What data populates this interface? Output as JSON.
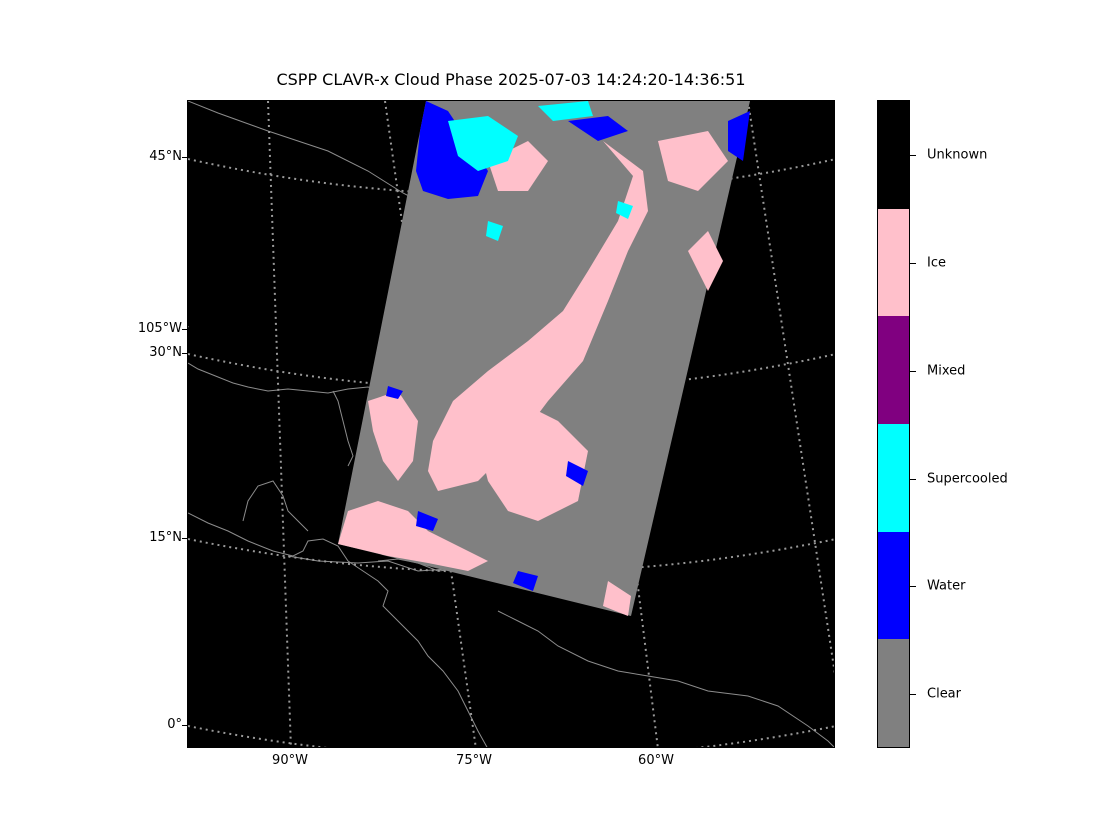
{
  "title": "CSPP CLAVR-x Cloud Phase 2025-07-03 14:24:20-14:36:51",
  "map": {
    "lat_labels": [
      "45°N",
      "30°N",
      "15°N",
      "0°"
    ],
    "lon_left_label": "105°W",
    "lon_labels": [
      "90°W",
      "75°W",
      "60°W"
    ],
    "colors": {
      "background": "#000000",
      "coast": "#8c8c8c",
      "grid": "#9a9a9a",
      "clear": "#808080",
      "water": "#0000ff",
      "supercooled": "#00ffff",
      "mixed": "#800080",
      "ice": "#ffc0cb",
      "unknown": "#000000"
    }
  },
  "colorbar": {
    "categories": [
      "Unknown",
      "Ice",
      "Mixed",
      "Supercooled",
      "Water",
      "Clear"
    ],
    "colors": [
      "#000000",
      "#ffc0cb",
      "#800080",
      "#00ffff",
      "#0000ff",
      "#808080"
    ]
  }
}
